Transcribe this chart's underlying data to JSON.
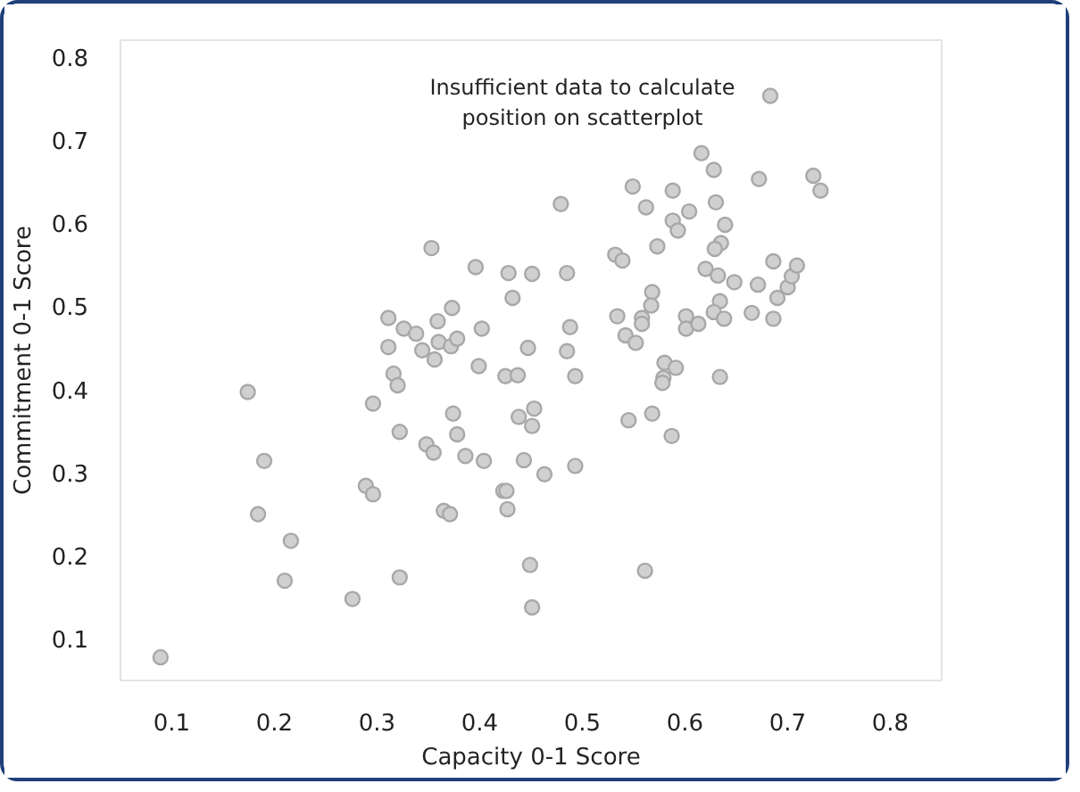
{
  "chart_data": {
    "type": "scatter",
    "xlabel": "Capacity 0-1 Score",
    "ylabel": "Commitment 0-1 Score",
    "xlim": [
      0.05,
      0.85
    ],
    "ylim": [
      0.05,
      0.82
    ],
    "annotations": [
      "Insufficient data to calculate\nposition on scatterplot"
    ],
    "xticks": [
      0.1,
      0.2,
      0.3,
      0.4,
      0.5,
      0.6,
      0.7,
      0.8
    ],
    "yticks": [
      0.1,
      0.2,
      0.3,
      0.4,
      0.5,
      0.6,
      0.7,
      0.8
    ],
    "grid": false,
    "marker": "circle",
    "series": [
      {
        "color": "#d0d0d0",
        "x": [
          0.089,
          0.174,
          0.19,
          0.184,
          0.216,
          0.21,
          0.276,
          0.296,
          0.289,
          0.296,
          0.322,
          0.322,
          0.311,
          0.311,
          0.316,
          0.32,
          0.326,
          0.338,
          0.344,
          0.353,
          0.359,
          0.36,
          0.356,
          0.372,
          0.378,
          0.373,
          0.348,
          0.355,
          0.374,
          0.378,
          0.386,
          0.365,
          0.371,
          0.396,
          0.402,
          0.399,
          0.404,
          0.423,
          0.426,
          0.427,
          0.428,
          0.432,
          0.425,
          0.437,
          0.451,
          0.447,
          0.438,
          0.453,
          0.451,
          0.443,
          0.463,
          0.449,
          0.451,
          0.479,
          0.485,
          0.488,
          0.485,
          0.493,
          0.493,
          0.532,
          0.539,
          0.534,
          0.542,
          0.552,
          0.549,
          0.545,
          0.558,
          0.558,
          0.562,
          0.561,
          0.568,
          0.567,
          0.573,
          0.568,
          0.58,
          0.579,
          0.578,
          0.591,
          0.587,
          0.588,
          0.588,
          0.593,
          0.604,
          0.601,
          0.601,
          0.613,
          0.616,
          0.628,
          0.63,
          0.639,
          0.635,
          0.629,
          0.62,
          0.632,
          0.648,
          0.634,
          0.628,
          0.638,
          0.634,
          0.665,
          0.671,
          0.672,
          0.683,
          0.686,
          0.686,
          0.69,
          0.7,
          0.704,
          0.709,
          0.725,
          0.732
        ],
        "values": [
          0.078,
          0.397,
          0.314,
          0.25,
          0.218,
          0.17,
          0.148,
          0.383,
          0.284,
          0.274,
          0.174,
          0.349,
          0.486,
          0.451,
          0.419,
          0.405,
          0.473,
          0.467,
          0.447,
          0.57,
          0.482,
          0.457,
          0.436,
          0.452,
          0.461,
          0.498,
          0.334,
          0.324,
          0.371,
          0.346,
          0.32,
          0.254,
          0.25,
          0.547,
          0.473,
          0.428,
          0.314,
          0.278,
          0.278,
          0.256,
          0.54,
          0.51,
          0.416,
          0.417,
          0.539,
          0.45,
          0.367,
          0.377,
          0.356,
          0.315,
          0.298,
          0.189,
          0.138,
          0.623,
          0.54,
          0.475,
          0.446,
          0.416,
          0.308,
          0.562,
          0.555,
          0.488,
          0.465,
          0.456,
          0.644,
          0.363,
          0.486,
          0.479,
          0.619,
          0.182,
          0.517,
          0.501,
          0.572,
          0.371,
          0.432,
          0.414,
          0.408,
          0.426,
          0.344,
          0.639,
          0.603,
          0.591,
          0.614,
          0.488,
          0.473,
          0.479,
          0.684,
          0.664,
          0.625,
          0.598,
          0.576,
          0.569,
          0.545,
          0.537,
          0.529,
          0.506,
          0.493,
          0.485,
          0.415,
          0.492,
          0.526,
          0.653,
          0.753,
          0.554,
          0.485,
          0.51,
          0.523,
          0.536,
          0.549,
          0.657,
          0.639
        ]
      }
    ]
  }
}
